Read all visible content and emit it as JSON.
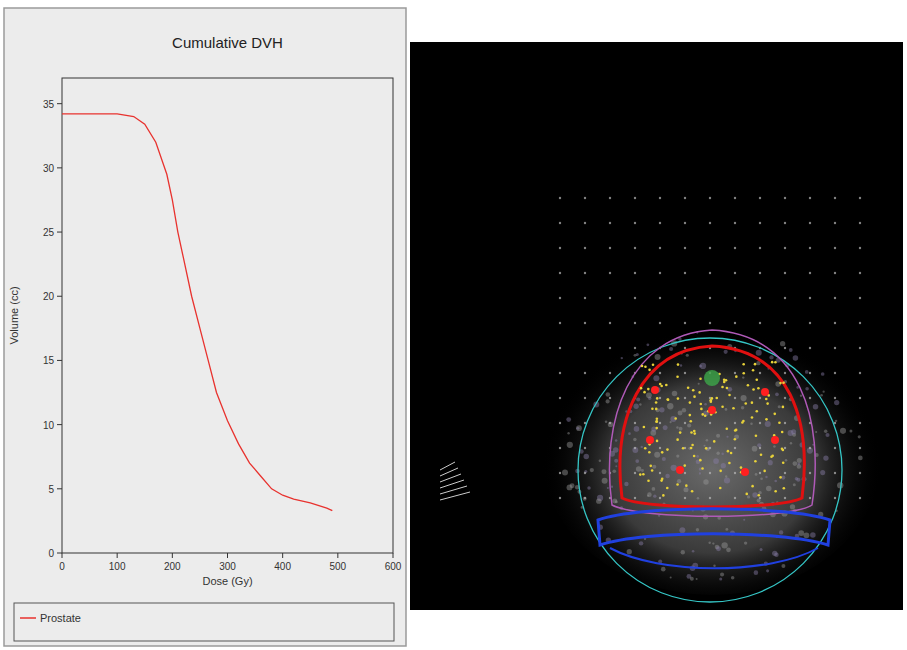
{
  "chart_data": {
    "type": "line",
    "title": "Cumulative DVH",
    "x_label": "Dose (Gy)",
    "y_label": "Volume (cc)",
    "x": [
      0,
      50,
      100,
      130,
      150,
      170,
      190,
      200,
      210,
      220,
      235,
      250,
      265,
      280,
      300,
      320,
      340,
      360,
      380,
      400,
      420,
      450,
      480,
      490
    ],
    "series": [
      {
        "name": "Prostate",
        "color": "#e8322e",
        "values": [
          34.2,
          34.2,
          34.2,
          34.0,
          33.4,
          32.0,
          29.5,
          27.5,
          25.0,
          23.0,
          20.0,
          17.5,
          15.0,
          12.5,
          10.3,
          8.5,
          7.0,
          6.0,
          5.0,
          4.5,
          4.2,
          3.9,
          3.5,
          3.3
        ]
      }
    ],
    "xlim": [
      0,
      600
    ],
    "xticks": [
      0,
      100,
      200,
      300,
      400,
      500,
      600
    ],
    "ylim": [
      0,
      37
    ],
    "yticks": [
      0,
      5,
      10,
      15,
      20,
      25,
      30,
      35
    ],
    "grid": false,
    "legend": "bottom"
  }
}
